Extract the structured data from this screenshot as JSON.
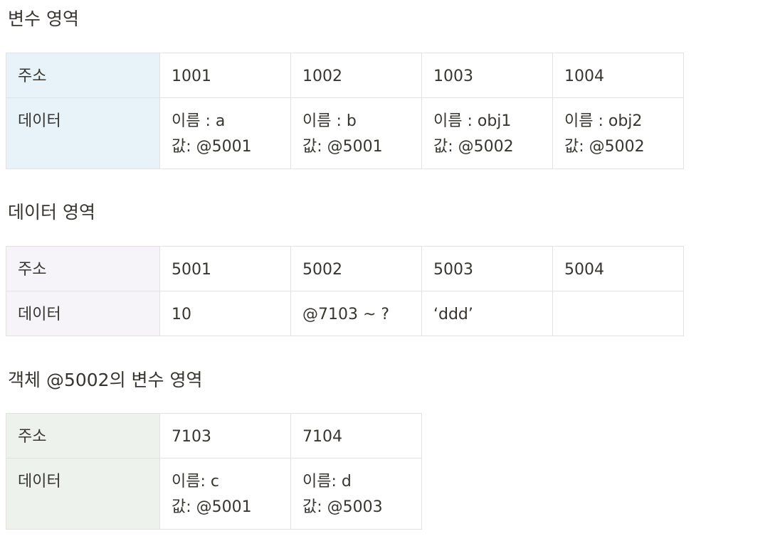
{
  "sections": [
    {
      "title": "변수 영역",
      "address_label": "주소",
      "data_label": "데이터",
      "columns": [
        {
          "address": "1001",
          "lines": [
            "이름 : a",
            "값: @5001"
          ]
        },
        {
          "address": "1002",
          "lines": [
            "이름 : b",
            "값: @5001"
          ]
        },
        {
          "address": "1003",
          "lines": [
            "이름 : obj1",
            "값: @5002"
          ]
        },
        {
          "address": "1004",
          "lines": [
            "이름 : obj2",
            "값: @5002"
          ]
        }
      ]
    },
    {
      "title": "데이터 영역",
      "address_label": "주소",
      "data_label": "데이터",
      "columns": [
        {
          "address": "5001",
          "lines": [
            "10"
          ]
        },
        {
          "address": "5002",
          "lines": [
            "@7103 ~ ?"
          ]
        },
        {
          "address": "5003",
          "lines": [
            "‘ddd’"
          ]
        },
        {
          "address": "5004",
          "lines": []
        }
      ]
    },
    {
      "title": "객체 @5002의 변수 영역",
      "address_label": "주소",
      "data_label": "데이터",
      "columns": [
        {
          "address": "7103",
          "lines": [
            "이름: c",
            "값: @5001"
          ]
        },
        {
          "address": "7104",
          "lines": [
            "이름: d",
            "값: @5003"
          ]
        }
      ]
    }
  ]
}
